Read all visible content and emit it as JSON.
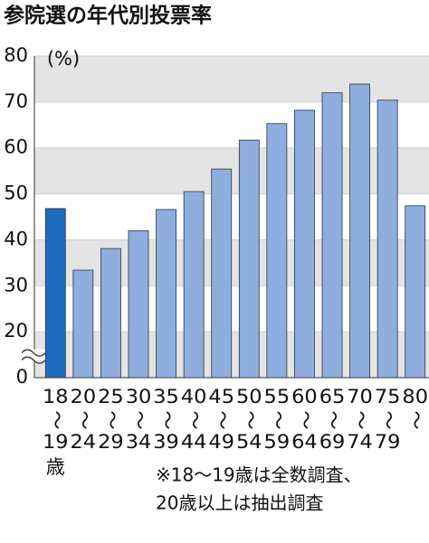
{
  "chart_data": {
    "type": "bar",
    "title": "参院選の年代別投票率",
    "y_unit": "(%)",
    "categories": [
      "18",
      "20",
      "25",
      "30",
      "35",
      "40",
      "45",
      "50",
      "55",
      "60",
      "65",
      "70",
      "75",
      "80"
    ],
    "categories_end": [
      "19",
      "24",
      "29",
      "34",
      "39",
      "44",
      "49",
      "54",
      "59",
      "64",
      "69",
      "74",
      "79",
      null
    ],
    "range_mark": "〜",
    "age_unit": "歳",
    "values": [
      46.8,
      33.4,
      38.1,
      42.0,
      46.6,
      50.5,
      55.4,
      61.7,
      65.3,
      68.2,
      72.0,
      73.9,
      70.4,
      47.4
    ],
    "colors": [
      "#1f6cc0",
      "#8eaee0",
      "#8eaee0",
      "#8eaee0",
      "#8eaee0",
      "#8eaee0",
      "#8eaee0",
      "#8eaee0",
      "#8eaee0",
      "#8eaee0",
      "#8eaee0",
      "#8eaee0",
      "#8eaee0",
      "#8eaee0"
    ],
    "ylim": [
      0,
      80
    ],
    "yticks": [
      0,
      20,
      30,
      40,
      50,
      60,
      70,
      80
    ],
    "axis_break": true,
    "grid_bands": true,
    "notes": [
      "※18〜19歳は全数調査、",
      "20歳以上は抽出調査"
    ]
  }
}
